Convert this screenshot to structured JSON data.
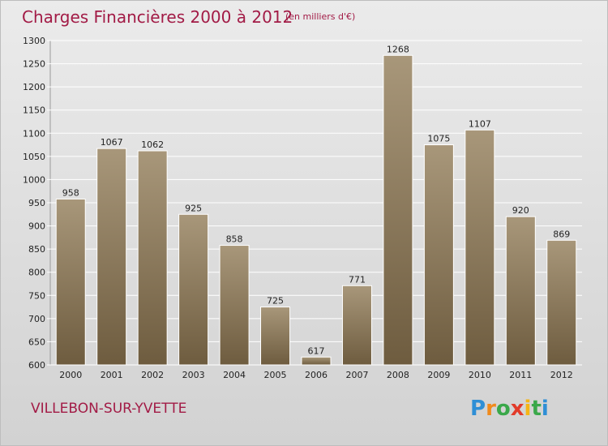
{
  "chart_data": {
    "type": "bar",
    "title": "Charges Financières 2000 à 2012",
    "subtitle": "(en milliers d'€)",
    "categories": [
      "2000",
      "2001",
      "2002",
      "2003",
      "2004",
      "2005",
      "2006",
      "2007",
      "2008",
      "2009",
      "2010",
      "2011",
      "2012"
    ],
    "values": [
      958,
      1067,
      1062,
      925,
      858,
      725,
      617,
      771,
      1268,
      1075,
      1107,
      920,
      869
    ],
    "ylim": [
      600,
      1300
    ],
    "yticks": [
      600,
      650,
      700,
      750,
      800,
      850,
      900,
      950,
      1000,
      1050,
      1100,
      1150,
      1200,
      1250,
      1300
    ],
    "grid": true,
    "bar_color_top": "#a8977a",
    "bar_color_bottom": "#6e5c3f"
  },
  "place": "VILLEBON-SUR-YVETTE",
  "logo": {
    "letters": [
      "P",
      "r",
      "o",
      "x",
      "i",
      "t",
      "i"
    ],
    "colors": [
      "#2f8fd6",
      "#f08a1c",
      "#3aa84a",
      "#e23b2a",
      "#f5b515",
      "#3aa84a",
      "#2f8fd6"
    ]
  }
}
